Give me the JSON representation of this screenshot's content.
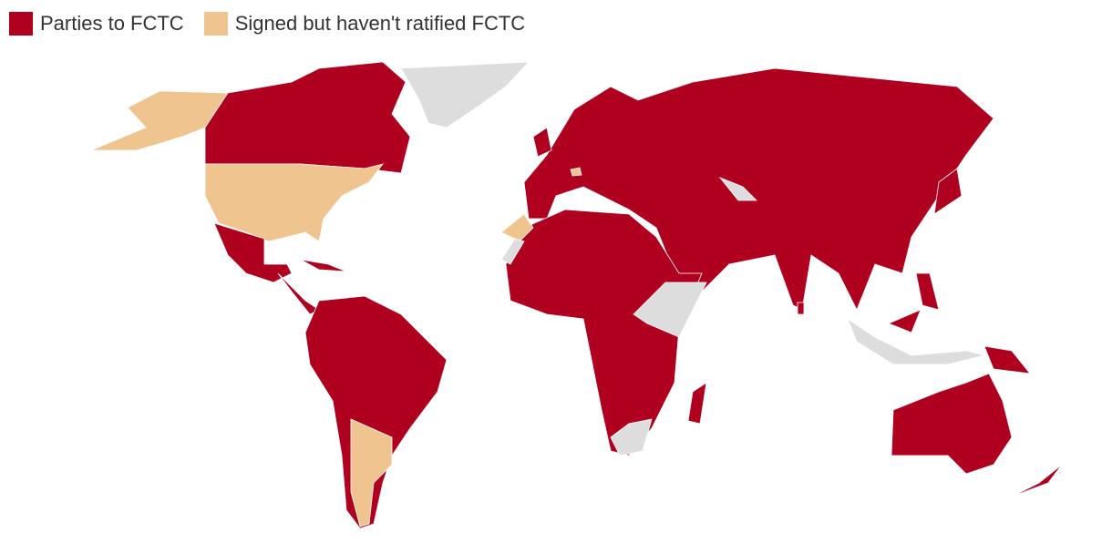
{
  "legend": {
    "items": [
      {
        "label": "Parties to FCTC",
        "color": "#b00020"
      },
      {
        "label": "Signed but haven't ratified FCTC",
        "color": "#f0c48e"
      }
    ]
  }
}
